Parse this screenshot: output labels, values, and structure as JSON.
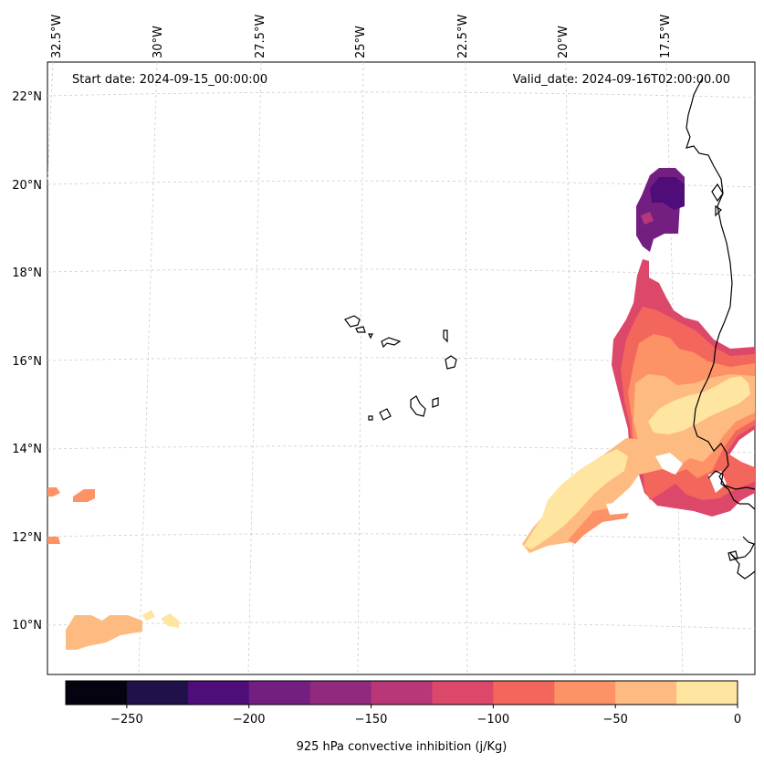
{
  "map": {
    "start_date_label": "Start date: 2024-09-15_00:00:00",
    "valid_date_label": "Valid_date: 2024-09-16T02:00:00.00",
    "longitude_labels": [
      "32.5°W",
      "30°W",
      "27.5°W",
      "25°W",
      "22.5°W",
      "20°W",
      "17.5°W"
    ],
    "latitude_labels": [
      "22°N",
      "20°N",
      "18°N",
      "16°N",
      "14°N",
      "12°N",
      "10°N"
    ],
    "gridlines": "dashed, light gray"
  },
  "colorbar": {
    "label": "925 hPa convective inhibition (j/Kg)",
    "range": [
      -275,
      0
    ],
    "tick_labels": [
      "−250",
      "−200",
      "−150",
      "−100",
      "−50",
      "0"
    ],
    "colors": [
      "#05030f",
      "#20114b",
      "#4e0d79",
      "#731f82",
      "#912a7f",
      "#b73779",
      "#dc4869",
      "#f2665c",
      "#fd9266",
      "#febb81",
      "#fee5a0"
    ]
  },
  "palette": {
    "dark_purple": "#4e0d79",
    "mid_purple": "#731f82",
    "magenta": "#b73779",
    "pink_red": "#dc4869",
    "salmon": "#f2665c",
    "orange": "#fd9266",
    "light_orange": "#febb81",
    "pale_yellow": "#fee5a0"
  }
}
